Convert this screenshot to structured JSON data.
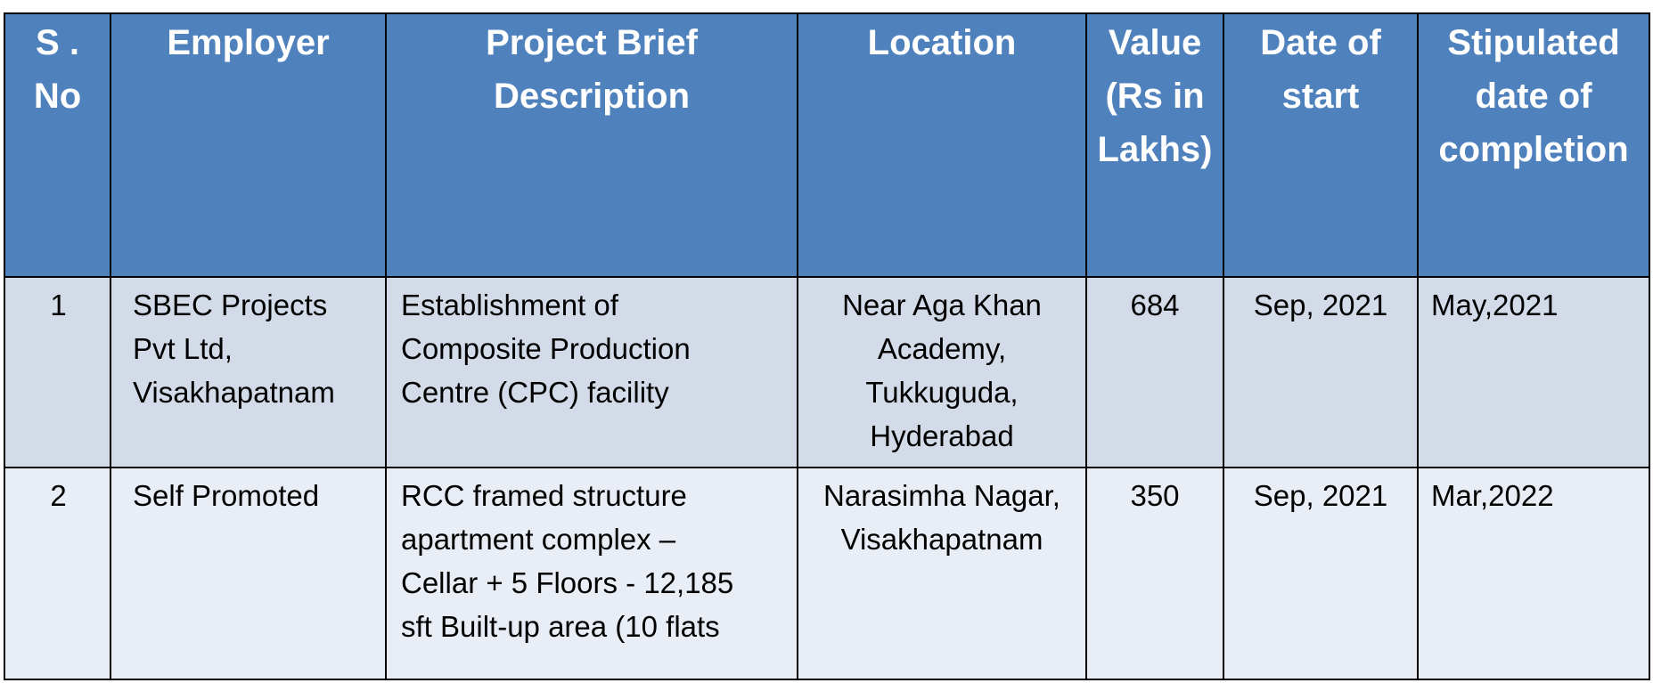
{
  "table": {
    "headers": [
      [
        "S .",
        "No"
      ],
      [
        "Employer"
      ],
      [
        "Project Brief",
        "Description"
      ],
      [
        "Location"
      ],
      [
        "Value",
        "(Rs in",
        "Lakhs)"
      ],
      [
        "Date of",
        "start"
      ],
      [
        "Stipulated",
        "date of",
        "completion"
      ]
    ],
    "rows": [
      {
        "sno": "1",
        "employer": [
          "SBEC Projects",
          "Pvt Ltd,",
          "Visakhapatnam"
        ],
        "description": [
          "Establishment of",
          "Composite Production",
          "Centre (CPC) facility"
        ],
        "location": [
          "Near Aga Khan",
          "Academy,",
          "Tukkuguda,",
          "Hyderabad"
        ],
        "value": "684",
        "start": "Sep, 2021",
        "completion": "May,2021"
      },
      {
        "sno": "2",
        "employer": [
          "Self Promoted"
        ],
        "description": [
          "RCC framed structure",
          "apartment complex –",
          "Cellar + 5 Floors - 12,185",
          "sft Built-up area (10 flats"
        ],
        "location": [
          "Narasimha Nagar,",
          "Visakhapatnam"
        ],
        "value": "350",
        "start": "Sep, 2021",
        "completion": "Mar,2022"
      }
    ]
  },
  "colors": {
    "header_bg": "#4f81bd",
    "row_odd_bg": "#d3dbe9",
    "row_even_bg": "#e9eef6",
    "border": "#000000"
  }
}
